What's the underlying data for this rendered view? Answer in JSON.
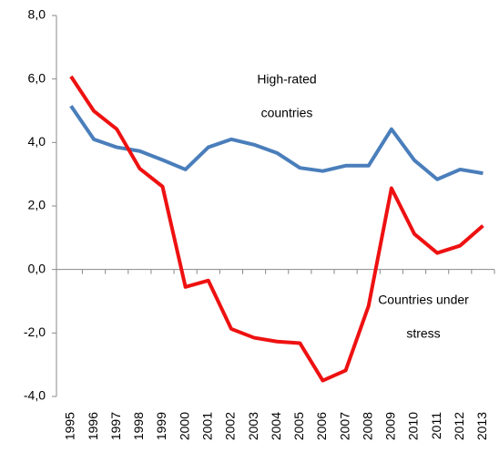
{
  "chart_data": {
    "type": "line",
    "categories": [
      "1995",
      "1996",
      "1997",
      "1998",
      "1999",
      "2000",
      "2001",
      "2002",
      "2003",
      "2004",
      "2005",
      "2006",
      "2007",
      "2008",
      "2009",
      "2010",
      "2011",
      "2012",
      "2013"
    ],
    "series": [
      {
        "color": "#4a7ebb",
        "values": [
          5.15,
          4.1,
          3.85,
          3.73,
          3.45,
          3.15,
          3.85,
          4.1,
          3.93,
          3.67,
          3.2,
          3.1,
          3.27,
          3.27,
          4.42,
          3.44,
          2.84,
          3.15,
          3.03
        ]
      },
      {
        "color": "#ee1111",
        "values": [
          6.08,
          4.99,
          4.42,
          3.18,
          2.61,
          -0.55,
          -0.35,
          -1.87,
          -2.15,
          -2.27,
          -2.32,
          -3.5,
          -3.18,
          -1.15,
          2.56,
          1.12,
          0.52,
          0.75,
          1.38
        ]
      }
    ],
    "annotations": [
      [
        "High-rated",
        "countries"
      ],
      [
        "Countries under",
        "stress"
      ]
    ],
    "ylim": [
      -4,
      8
    ],
    "yticks": [
      {
        "value": -4,
        "label": "-4,0"
      },
      {
        "value": -2,
        "label": "-2,0"
      },
      {
        "value": 0,
        "label": "0,0"
      },
      {
        "value": 2,
        "label": "2,0"
      },
      {
        "value": 4,
        "label": "4,0"
      },
      {
        "value": 6,
        "label": "6,0"
      },
      {
        "value": 8,
        "label": "8,0"
      }
    ]
  }
}
